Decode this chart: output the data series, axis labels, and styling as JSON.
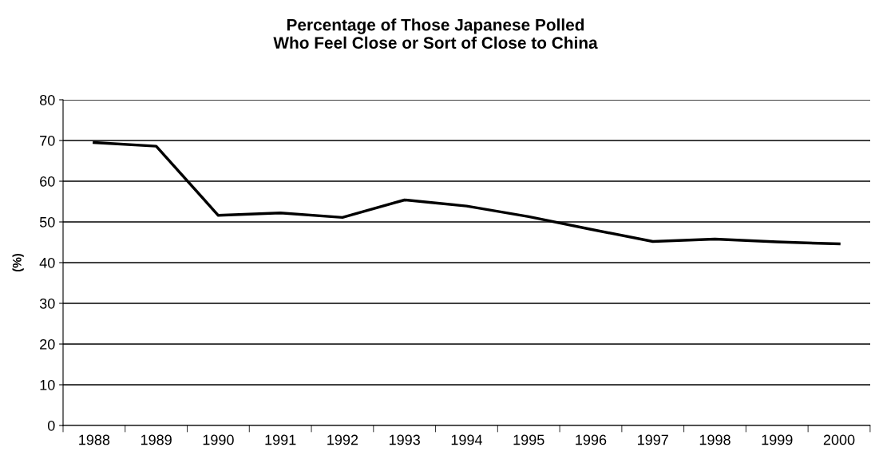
{
  "chart_data": {
    "type": "line",
    "title": "Percentage of Those Japanese Polled\nWho Feel Close or Sort of Close to China",
    "ylabel": "(%)",
    "categories": [
      "1988",
      "1989",
      "1990",
      "1991",
      "1992",
      "1993",
      "1994",
      "1995",
      "1996",
      "1997",
      "1998",
      "1999",
      "2000"
    ],
    "series": [
      {
        "color": "#000000",
        "values": [
          69.5,
          68.6,
          51.6,
          52.2,
          51.1,
          55.4,
          53.9,
          51.3,
          48.2,
          45.2,
          45.8,
          45.1,
          44.6
        ]
      }
    ],
    "ylim": [
      0,
      80
    ],
    "yticks": [
      0,
      10,
      20,
      30,
      40,
      50,
      60,
      70,
      80
    ],
    "grid": "y",
    "marker": "none",
    "line_style": "solid"
  }
}
